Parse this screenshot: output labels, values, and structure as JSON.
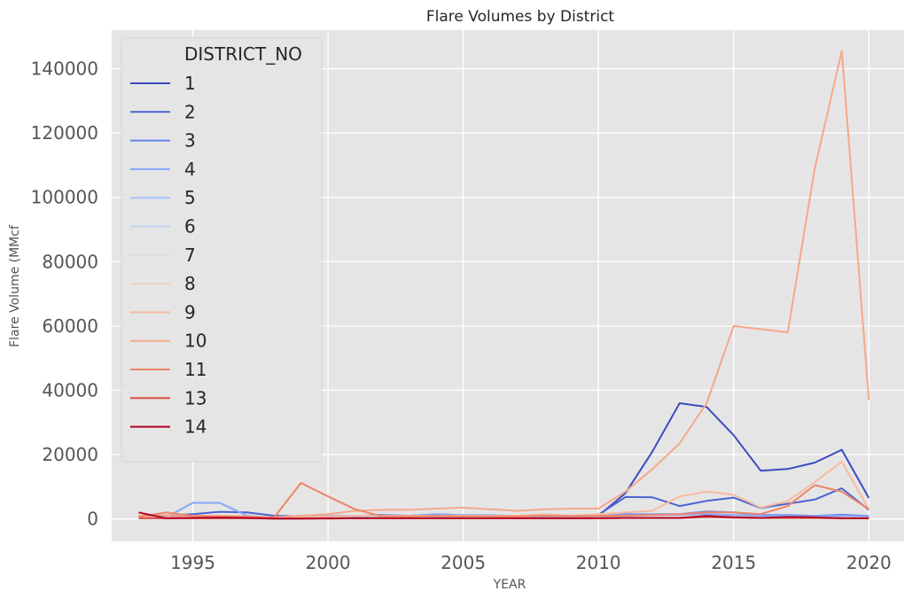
{
  "chart_data": {
    "type": "line",
    "title": "Flare Volumes by District",
    "xlabel": "YEAR",
    "ylabel": "Flare Volume (MMcf",
    "xlim": [
      1992,
      2021.3
    ],
    "ylim": [
      -7000,
      152000
    ],
    "x_ticks": [
      1995,
      2000,
      2005,
      2010,
      2015,
      2020
    ],
    "y_ticks": [
      0,
      20000,
      40000,
      60000,
      80000,
      100000,
      120000,
      140000
    ],
    "grid": true,
    "background": "#e5e5e5",
    "legend": {
      "title": "DISTRICT_NO",
      "placement": "upper-left"
    },
    "x": [
      1993,
      1994,
      1995,
      1996,
      1997,
      1998,
      1999,
      2000,
      2001,
      2002,
      2003,
      2004,
      2005,
      2006,
      2007,
      2008,
      2009,
      2010,
      2011,
      2012,
      2013,
      2014,
      2015,
      2016,
      2017,
      2018,
      2019,
      2020
    ],
    "series": [
      {
        "name": "1",
        "color": "#3b4cc0",
        "values": [
          500,
          700,
          600,
          500,
          400,
          200,
          200,
          300,
          400,
          500,
          400,
          500,
          400,
          400,
          400,
          500,
          500,
          1000,
          8000,
          21000,
          36000,
          34800,
          26000,
          15000,
          15500,
          17500,
          21500,
          6500
        ]
      },
      {
        "name": "2",
        "color": "#4a63d3",
        "values": [
          800,
          1000,
          1500,
          2200,
          2000,
          1000,
          800,
          900,
          900,
          1200,
          1000,
          1100,
          900,
          900,
          900,
          1000,
          800,
          1300,
          6800,
          6700,
          4000,
          5600,
          6600,
          3400,
          4700,
          6000,
          9500,
          2800
        ]
      },
      {
        "name": "3",
        "color": "#6282ea",
        "values": [
          600,
          500,
          400,
          500,
          400,
          300,
          300,
          400,
          500,
          600,
          500,
          700,
          600,
          500,
          500,
          600,
          500,
          800,
          1500,
          1400,
          1500,
          2300,
          2000,
          1200,
          1200,
          900,
          1300,
          900
        ]
      },
      {
        "name": "4",
        "color": "#84a7fc",
        "values": [
          300,
          400,
          5000,
          5000,
          1000,
          300,
          300,
          1000,
          1000,
          800,
          1000,
          1500,
          1200,
          1200,
          900,
          1000,
          900,
          1000,
          1200,
          1200,
          1300,
          1500,
          1200,
          1000,
          1000,
          800,
          1000,
          800
        ]
      },
      {
        "name": "5",
        "color": "#a5c3fe",
        "values": [
          300,
          300,
          300,
          400,
          300,
          200,
          200,
          300,
          300,
          300,
          300,
          300,
          300,
          300,
          300,
          300,
          300,
          400,
          400,
          400,
          400,
          500,
          500,
          400,
          400,
          400,
          400,
          300
        ]
      },
      {
        "name": "6",
        "color": "#c3d5f4",
        "values": [
          200,
          200,
          200,
          300,
          200,
          200,
          200,
          200,
          200,
          200,
          200,
          200,
          200,
          200,
          200,
          200,
          200,
          300,
          300,
          300,
          300,
          400,
          400,
          300,
          300,
          300,
          300,
          200
        ]
      },
      {
        "name": "7",
        "color": "#dcdddd",
        "values": [
          200,
          200,
          200,
          200,
          200,
          100,
          100,
          200,
          200,
          200,
          200,
          200,
          200,
          200,
          200,
          200,
          200,
          200,
          200,
          200,
          200,
          300,
          300,
          200,
          200,
          200,
          200,
          200
        ]
      },
      {
        "name": "8",
        "color": "#ecd3c5",
        "values": [
          300,
          300,
          300,
          300,
          300,
          200,
          200,
          300,
          300,
          300,
          300,
          300,
          300,
          300,
          300,
          300,
          300,
          300,
          400,
          400,
          500,
          600,
          500,
          400,
          400,
          400,
          400,
          300
        ]
      },
      {
        "name": "9",
        "color": "#f7ba9f",
        "values": [
          500,
          500,
          500,
          500,
          500,
          400,
          500,
          800,
          1000,
          1000,
          1000,
          1000,
          1000,
          1000,
          1000,
          1500,
          1000,
          1500,
          2000,
          2500,
          7000,
          8500,
          7500,
          3500,
          5500,
          11500,
          17800,
          3000
        ]
      },
      {
        "name": "10",
        "color": "#f5a889",
        "values": [
          1000,
          1200,
          1000,
          1000,
          800,
          500,
          1000,
          1500,
          2500,
          2800,
          2800,
          3200,
          3500,
          3000,
          2500,
          3000,
          3200,
          3200,
          8500,
          15500,
          23500,
          36000,
          60000,
          59000,
          58000,
          109000,
          145500,
          37000
        ]
      },
      {
        "name": "11",
        "color": "#ee8468",
        "values": [
          600,
          2000,
          900,
          700,
          600,
          400,
          11200,
          7000,
          3000,
          800,
          800,
          900,
          800,
          800,
          800,
          1000,
          900,
          900,
          1000,
          1200,
          1500,
          2000,
          2000,
          1500,
          4000,
          10500,
          8500,
          3000
        ]
      },
      {
        "name": "13",
        "color": "#d65244",
        "values": [
          200,
          200,
          200,
          200,
          200,
          100,
          100,
          100,
          200,
          200,
          200,
          200,
          200,
          200,
          200,
          200,
          200,
          200,
          300,
          300,
          300,
          600,
          400,
          300,
          300,
          300,
          200,
          200
        ]
      },
      {
        "name": "14",
        "color": "#b40426",
        "values": [
          2000,
          200,
          300,
          400,
          300,
          100,
          100,
          200,
          200,
          200,
          200,
          200,
          200,
          200,
          200,
          200,
          200,
          200,
          300,
          300,
          300,
          900,
          500,
          300,
          600,
          500,
          200,
          200
        ]
      }
    ]
  }
}
